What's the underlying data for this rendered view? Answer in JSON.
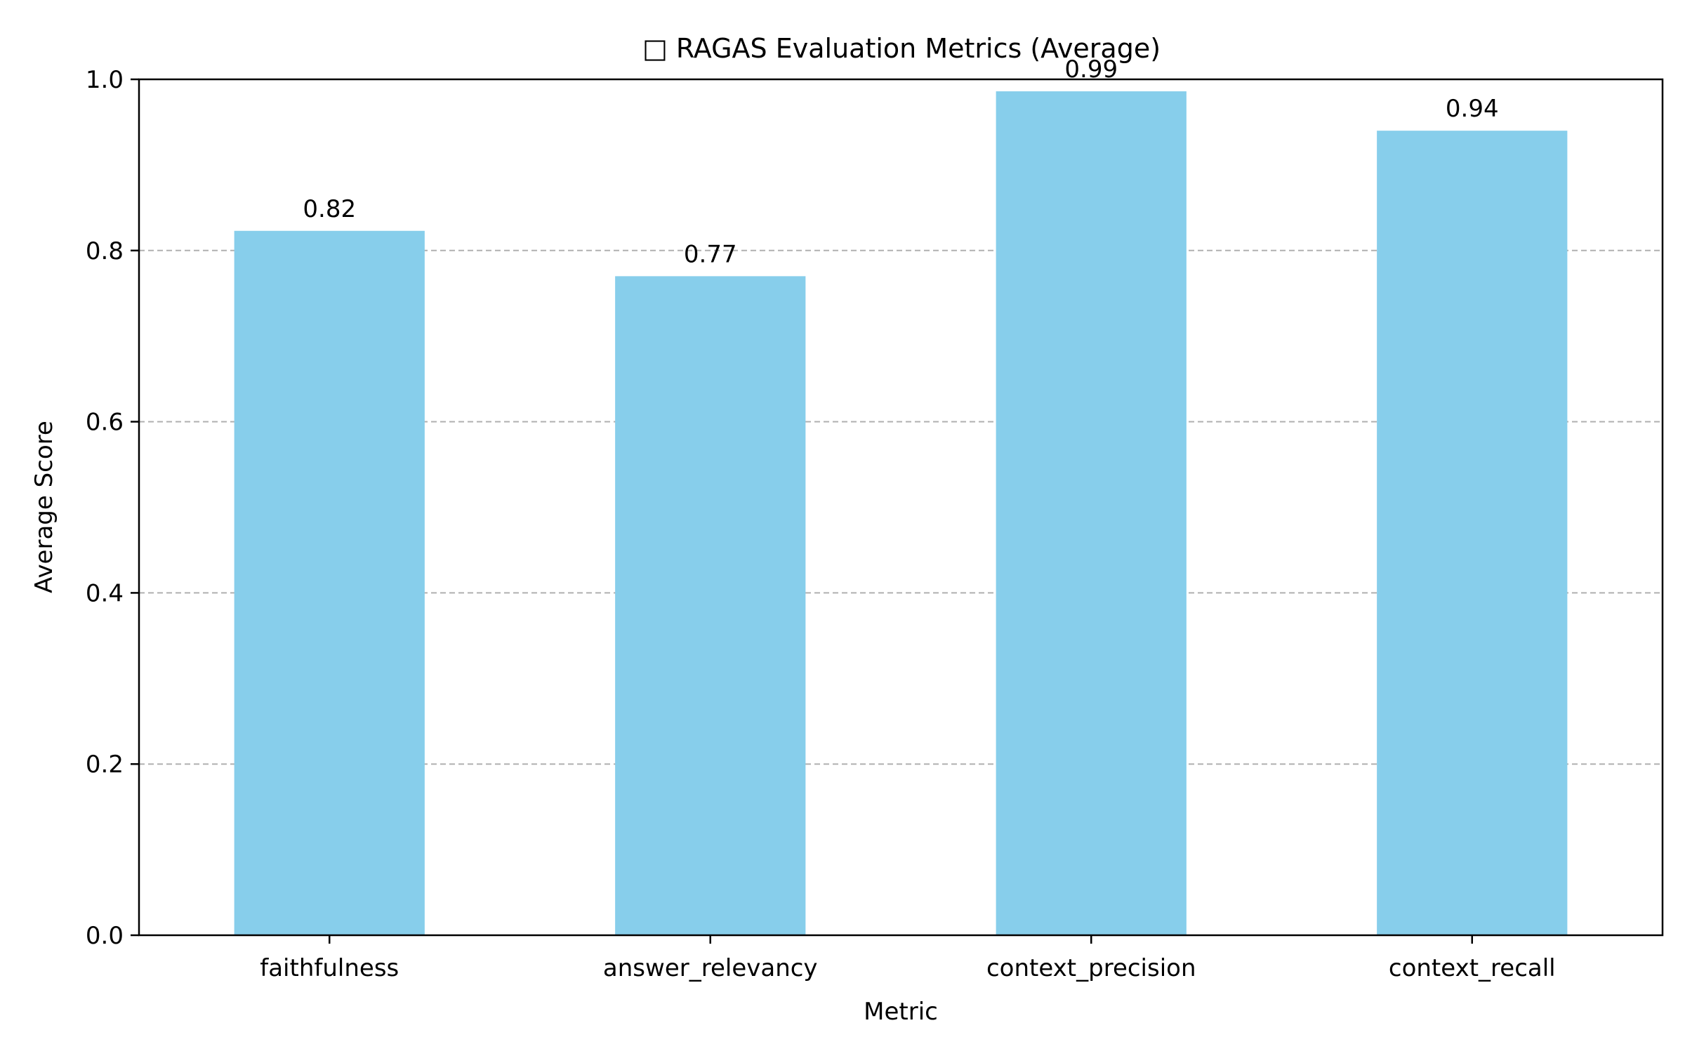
{
  "chart_data": {
    "type": "bar",
    "title": "□ RAGAS Evaluation Metrics (Average)",
    "xlabel": "Metric",
    "ylabel": "Average Score",
    "categories": [
      "faithfulness",
      "answer_relevancy",
      "context_precision",
      "context_recall"
    ],
    "values": [
      0.823,
      0.77,
      0.986,
      0.94
    ],
    "data_labels": [
      "0.82",
      "0.77",
      "0.99",
      "0.94"
    ],
    "ylim": [
      0,
      1.0
    ],
    "yticks": [
      0.0,
      0.2,
      0.4,
      0.6,
      0.8,
      1.0
    ],
    "ytick_labels": [
      "0.0",
      "0.2",
      "0.4",
      "0.6",
      "0.8",
      "1.0"
    ],
    "grid": {
      "axis": "y",
      "style": "dashed",
      "color": "#b0b0b0"
    },
    "bar_color": "#87CEEB",
    "legend": "none"
  }
}
